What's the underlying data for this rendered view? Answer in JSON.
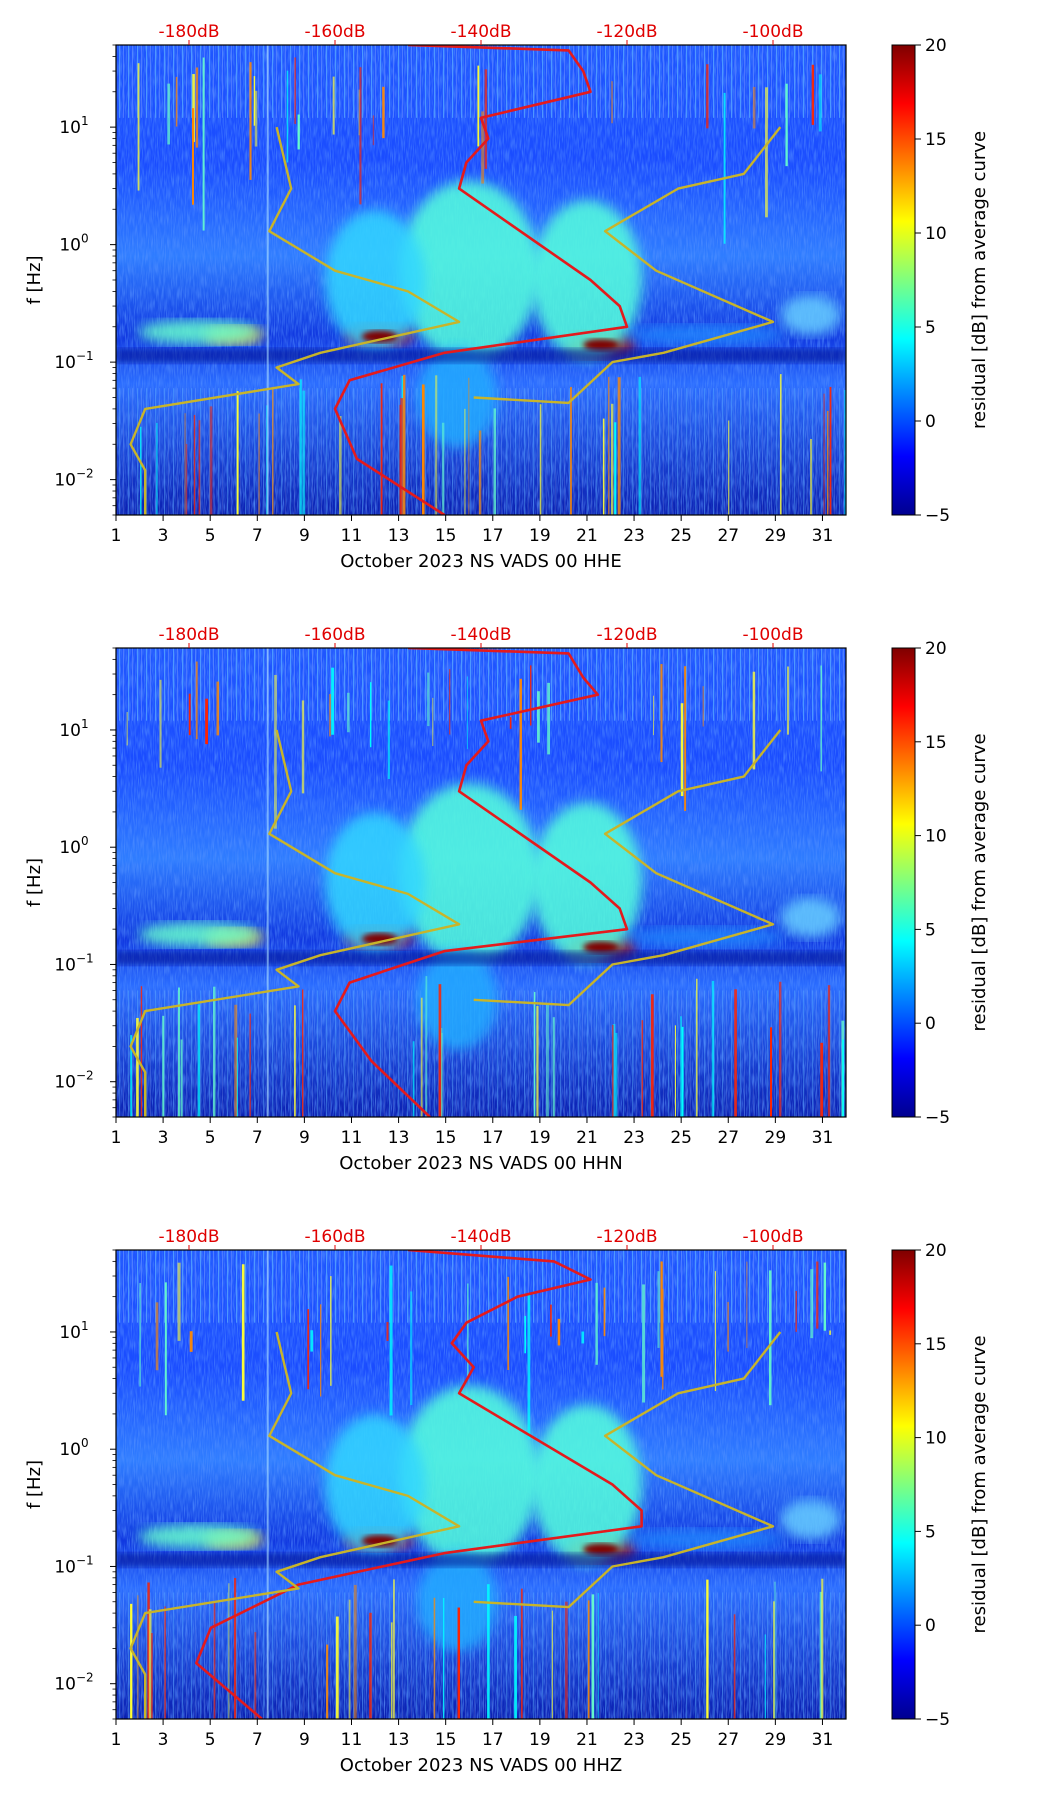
{
  "colors": {
    "red_curve": "#e41a1c",
    "yellow_curve": "#c8b42a",
    "top_axis_text": "#e00000",
    "colormap": [
      "#00008f",
      "#0000ff",
      "#007fff",
      "#00ffff",
      "#7fff7f",
      "#ffff00",
      "#ff7f00",
      "#ff0000",
      "#7f0000"
    ]
  },
  "chart_data": [
    {
      "type": "heatmap",
      "title": "",
      "xlabel": "October 2023 NS VADS 00 HHE",
      "ylabel": "f [Hz]",
      "colorbar_label": "residual [dB] from average curve",
      "xlim": [
        1,
        32
      ],
      "ylim": [
        0.005,
        50
      ],
      "x_ticks": [
        "1",
        "3",
        "5",
        "7",
        "9",
        "11",
        "13",
        "15",
        "17",
        "19",
        "21",
        "23",
        "25",
        "27",
        "29",
        "31"
      ],
      "y_ticks": [
        {
          "exp": "−2",
          "value": 0.01
        },
        {
          "exp": "−1",
          "value": 0.1
        },
        {
          "exp": "0",
          "value": 1
        },
        {
          "exp": "1",
          "value": 10
        }
      ],
      "top_axis_ticks": [
        "-180dB",
        "-160dB",
        "-140dB",
        "-120dB",
        "-100dB"
      ],
      "top_axis_range_db": [
        -190,
        -90
      ],
      "colorbar_ticks": [
        "20",
        "15",
        "10",
        "5",
        "0",
        "−5"
      ],
      "colorbar_range": [
        -5,
        20
      ],
      "series": [
        {
          "name": "average PSD (red)",
          "color": "red",
          "points_db_freq": [
            [
              -150,
              50
            ],
            [
              -128,
              45
            ],
            [
              -126,
              30
            ],
            [
              -125,
              20
            ],
            [
              -140,
              12
            ],
            [
              -139,
              8
            ],
            [
              -142,
              5
            ],
            [
              -143,
              3
            ],
            [
              -125,
              0.5
            ],
            [
              -121,
              0.3
            ],
            [
              -120,
              0.2
            ],
            [
              -145,
              0.12
            ],
            [
              -158,
              0.07
            ],
            [
              -160,
              0.04
            ],
            [
              -157,
              0.015
            ],
            [
              -145,
              0.005
            ]
          ]
        },
        {
          "name": "noise model (yellow)",
          "color": "yellow",
          "points_db_freq": [
            [
              -168,
              10
            ],
            [
              -166,
              3
            ],
            [
              -169,
              1.3
            ],
            [
              -160,
              0.6
            ],
            [
              -150,
              0.4
            ],
            [
              -143,
              0.22
            ],
            [
              -162,
              0.12
            ],
            [
              -168,
              0.09
            ],
            [
              -165,
              0.065
            ],
            [
              -186,
              0.04
            ],
            [
              -188,
              0.02
            ],
            [
              -186,
              0.012
            ],
            [
              -186,
              0.005
            ]
          ]
        },
        {
          "name": "high noise model (yellow)",
          "color": "yellow",
          "points_db_freq": [
            [
              -141,
              0.05
            ],
            [
              -128,
              0.045
            ],
            [
              -122,
              0.1
            ],
            [
              -115,
              0.12
            ],
            [
              -100,
              0.22
            ],
            [
              -116,
              0.6
            ],
            [
              -123,
              1.3
            ],
            [
              -113,
              3
            ],
            [
              -104,
              4
            ],
            [
              -99,
              10
            ]
          ]
        }
      ]
    },
    {
      "type": "heatmap",
      "title": "",
      "xlabel": "October 2023 NS VADS 00 HHN",
      "ylabel": "f [Hz]",
      "colorbar_label": "residual [dB] from average curve",
      "xlim": [
        1,
        32
      ],
      "ylim": [
        0.005,
        50
      ],
      "x_ticks": [
        "1",
        "3",
        "5",
        "7",
        "9",
        "11",
        "13",
        "15",
        "17",
        "19",
        "21",
        "23",
        "25",
        "27",
        "29",
        "31"
      ],
      "y_ticks": [
        {
          "exp": "−2",
          "value": 0.01
        },
        {
          "exp": "−1",
          "value": 0.1
        },
        {
          "exp": "0",
          "value": 1
        },
        {
          "exp": "1",
          "value": 10
        }
      ],
      "top_axis_ticks": [
        "-180dB",
        "-160dB",
        "-140dB",
        "-120dB",
        "-100dB"
      ],
      "top_axis_range_db": [
        -190,
        -90
      ],
      "colorbar_ticks": [
        "20",
        "15",
        "10",
        "5",
        "0",
        "−5"
      ],
      "colorbar_range": [
        -5,
        20
      ],
      "series": [
        {
          "name": "average PSD (red)",
          "color": "red",
          "points_db_freq": [
            [
              -150,
              50
            ],
            [
              -128,
              45
            ],
            [
              -126,
              28
            ],
            [
              -124,
              20
            ],
            [
              -140,
              12
            ],
            [
              -139,
              8
            ],
            [
              -142,
              5
            ],
            [
              -143,
              3
            ],
            [
              -125,
              0.5
            ],
            [
              -121,
              0.3
            ],
            [
              -120,
              0.2
            ],
            [
              -145,
              0.13
            ],
            [
              -158,
              0.07
            ],
            [
              -160,
              0.04
            ],
            [
              -155,
              0.015
            ],
            [
              -147,
              0.005
            ]
          ]
        },
        {
          "name": "noise model (yellow)",
          "color": "yellow",
          "points_db_freq": [
            [
              -168,
              10
            ],
            [
              -166,
              3
            ],
            [
              -169,
              1.3
            ],
            [
              -160,
              0.6
            ],
            [
              -150,
              0.4
            ],
            [
              -143,
              0.22
            ],
            [
              -162,
              0.12
            ],
            [
              -168,
              0.09
            ],
            [
              -165,
              0.065
            ],
            [
              -186,
              0.04
            ],
            [
              -188,
              0.02
            ],
            [
              -186,
              0.012
            ],
            [
              -186,
              0.005
            ]
          ]
        },
        {
          "name": "high noise model (yellow)",
          "color": "yellow",
          "points_db_freq": [
            [
              -141,
              0.05
            ],
            [
              -128,
              0.045
            ],
            [
              -122,
              0.1
            ],
            [
              -115,
              0.12
            ],
            [
              -100,
              0.22
            ],
            [
              -116,
              0.6
            ],
            [
              -123,
              1.3
            ],
            [
              -113,
              3
            ],
            [
              -104,
              4
            ],
            [
              -99,
              10
            ]
          ]
        }
      ]
    },
    {
      "type": "heatmap",
      "title": "",
      "xlabel": "October 2023 NS VADS 00 HHZ",
      "ylabel": "f [Hz]",
      "colorbar_label": "residual [dB] from average curve",
      "xlim": [
        1,
        32
      ],
      "ylim": [
        0.005,
        50
      ],
      "x_ticks": [
        "1",
        "3",
        "5",
        "7",
        "9",
        "11",
        "13",
        "15",
        "17",
        "19",
        "21",
        "23",
        "25",
        "27",
        "29",
        "31"
      ],
      "y_ticks": [
        {
          "exp": "−2",
          "value": 0.01
        },
        {
          "exp": "−1",
          "value": 0.1
        },
        {
          "exp": "0",
          "value": 1
        },
        {
          "exp": "1",
          "value": 10
        }
      ],
      "top_axis_ticks": [
        "-180dB",
        "-160dB",
        "-140dB",
        "-120dB",
        "-100dB"
      ],
      "top_axis_range_db": [
        -190,
        -90
      ],
      "colorbar_ticks": [
        "20",
        "15",
        "10",
        "5",
        "0",
        "−5"
      ],
      "colorbar_range": [
        -5,
        20
      ],
      "series": [
        {
          "name": "average PSD (red)",
          "color": "red",
          "points_db_freq": [
            [
              -150,
              50
            ],
            [
              -130,
              40
            ],
            [
              -125,
              28
            ],
            [
              -135,
              20
            ],
            [
              -142,
              12
            ],
            [
              -144,
              8
            ],
            [
              -141,
              5
            ],
            [
              -143,
              3
            ],
            [
              -122,
              0.5
            ],
            [
              -118,
              0.3
            ],
            [
              -118,
              0.22
            ],
            [
              -145,
              0.13
            ],
            [
              -165,
              0.07
            ],
            [
              -177,
              0.03
            ],
            [
              -179,
              0.015
            ],
            [
              -170,
              0.005
            ]
          ]
        },
        {
          "name": "noise model (yellow)",
          "color": "yellow",
          "points_db_freq": [
            [
              -168,
              10
            ],
            [
              -166,
              3
            ],
            [
              -169,
              1.3
            ],
            [
              -160,
              0.6
            ],
            [
              -150,
              0.4
            ],
            [
              -143,
              0.22
            ],
            [
              -162,
              0.12
            ],
            [
              -168,
              0.09
            ],
            [
              -165,
              0.065
            ],
            [
              -186,
              0.04
            ],
            [
              -188,
              0.02
            ],
            [
              -186,
              0.012
            ],
            [
              -186,
              0.005
            ]
          ]
        },
        {
          "name": "high noise model (yellow)",
          "color": "yellow",
          "points_db_freq": [
            [
              -141,
              0.05
            ],
            [
              -128,
              0.045
            ],
            [
              -122,
              0.1
            ],
            [
              -115,
              0.12
            ],
            [
              -100,
              0.22
            ],
            [
              -116,
              0.6
            ],
            [
              -123,
              1.3
            ],
            [
              -113,
              3
            ],
            [
              -104,
              4
            ],
            [
              -99,
              10
            ]
          ]
        }
      ]
    }
  ]
}
